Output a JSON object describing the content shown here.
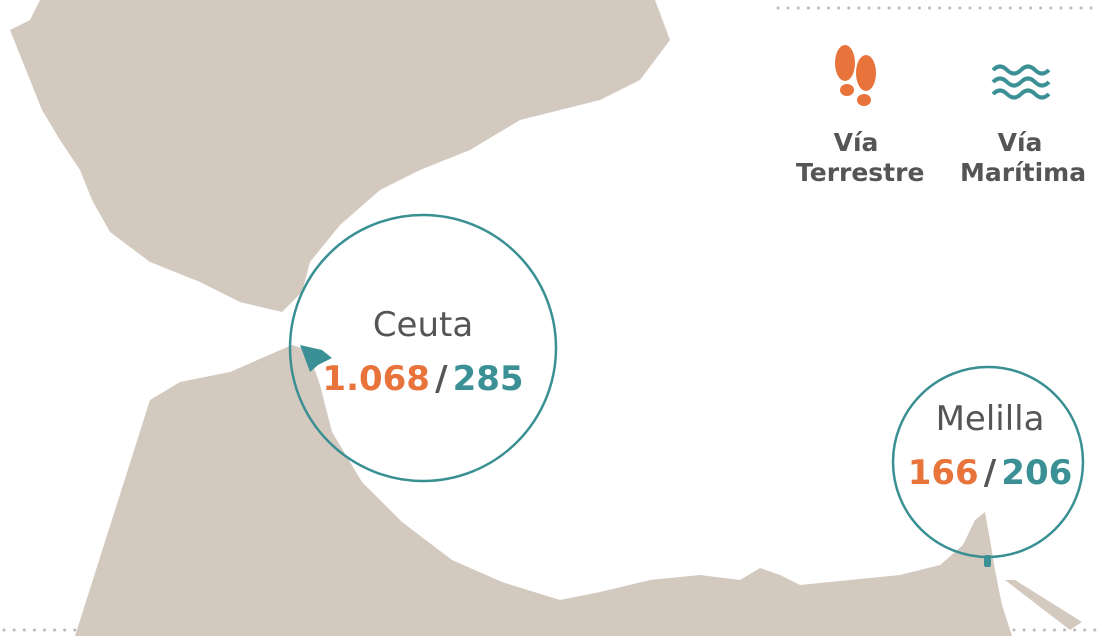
{
  "legend": [
    {
      "label": "Vía Terrestre"
    },
    {
      "label": "Vía Marítima"
    }
  ],
  "separator": "/",
  "cities": [
    {
      "name": "Ceuta",
      "land": "1.068",
      "sea": "285"
    },
    {
      "name": "Melilla",
      "land": "166",
      "sea": "206"
    }
  ]
}
